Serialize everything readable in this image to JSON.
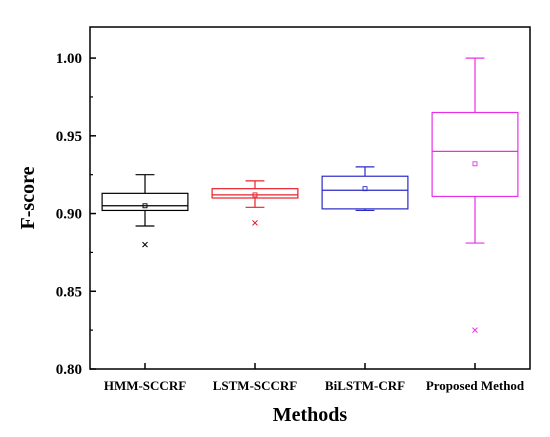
{
  "chart_data": {
    "type": "box",
    "xlabel": "Methods",
    "ylabel": "F-score",
    "ylim": [
      0.8,
      1.02
    ],
    "yticks": [
      0.8,
      0.85,
      0.9,
      0.95,
      1.0
    ],
    "ytick_labels": [
      "0.80",
      "0.85",
      "0.90",
      "0.95",
      "1.00"
    ],
    "grid": false,
    "series": [
      {
        "name": "HMM-SCCRF",
        "color": "#000000",
        "whisker_low": 0.892,
        "q1": 0.902,
        "median": 0.905,
        "q3": 0.913,
        "whisker_high": 0.925,
        "mean": 0.905,
        "outliers": [
          0.88
        ]
      },
      {
        "name": "LSTM-SCCRF",
        "color": "#e8202a",
        "whisker_low": 0.904,
        "q1": 0.91,
        "median": 0.912,
        "q3": 0.916,
        "whisker_high": 0.921,
        "mean": 0.912,
        "outliers": [
          0.894
        ]
      },
      {
        "name": "BiLSTM-CRF",
        "color": "#2b2bc4",
        "whisker_low": 0.902,
        "q1": 0.903,
        "median": 0.915,
        "q3": 0.924,
        "whisker_high": 0.93,
        "mean": 0.916,
        "outliers": []
      },
      {
        "name": "Proposed Method",
        "color": "#e830e8",
        "whisker_low": 0.881,
        "q1": 0.911,
        "median": 0.94,
        "q3": 0.965,
        "whisker_high": 1.0,
        "mean": 0.932,
        "outliers": [
          0.825
        ]
      }
    ]
  }
}
